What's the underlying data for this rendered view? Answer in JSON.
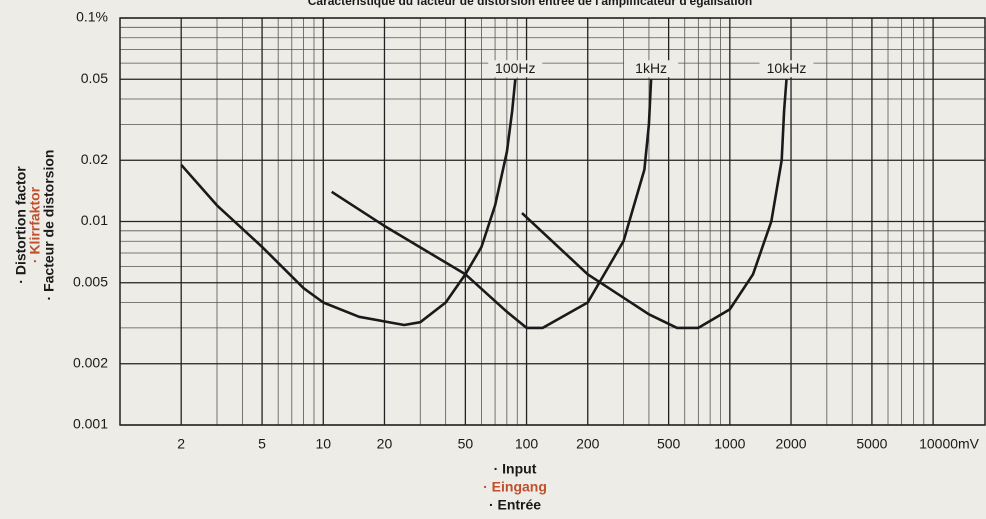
{
  "chart_data": {
    "type": "line",
    "title": "Caractéristique du facteur de distorsion entrée de l'amplificateur d'égalisation",
    "xlabel": [
      "· Input",
      "· Eingang",
      "· Entrée"
    ],
    "ylabel": [
      "· Distortion factor",
      "· Klirrfaktor",
      "· Facteur de distorsion"
    ],
    "xscale": "log",
    "yscale": "log",
    "grid": true,
    "xlim": [
      1,
      18000
    ],
    "ylim": [
      0.001,
      0.1
    ],
    "xticks": [
      2,
      5,
      10,
      20,
      50,
      100,
      200,
      500,
      1000,
      2000,
      5000,
      {
        "value": 10000,
        "label": "10000mV"
      }
    ],
    "yticks": [
      0.001,
      0.002,
      0.005,
      0.01,
      0.02,
      0.05,
      {
        "value": 0.1,
        "label": "0.1%"
      }
    ],
    "xminorticks": [
      3,
      4,
      6,
      7,
      8,
      9,
      30,
      40,
      60,
      70,
      80,
      90,
      300,
      400,
      600,
      700,
      800,
      900,
      3000,
      4000,
      6000,
      7000,
      8000,
      9000
    ],
    "yminorticks": [
      0.003,
      0.004,
      0.006,
      0.007,
      0.008,
      0.009,
      0.03,
      0.04,
      0.06,
      0.07,
      0.08,
      0.09
    ],
    "series": [
      {
        "name": "100Hz",
        "color": "#1a1a1a",
        "x": [
          2,
          3,
          5,
          8,
          10,
          15,
          25,
          30,
          40,
          50,
          60,
          70,
          80,
          85,
          88
        ],
        "values": [
          0.019,
          0.012,
          0.0075,
          0.0047,
          0.004,
          0.0034,
          0.0031,
          0.0032,
          0.004,
          0.0055,
          0.0075,
          0.012,
          0.022,
          0.035,
          0.05
        ]
      },
      {
        "name": "1kHz",
        "color": "#1a1a1a",
        "x": [
          11,
          20,
          50,
          80,
          100,
          120,
          200,
          300,
          380,
          400,
          410
        ],
        "values": [
          0.014,
          0.0095,
          0.0055,
          0.0036,
          0.003,
          0.003,
          0.004,
          0.008,
          0.018,
          0.03,
          0.05
        ]
      },
      {
        "name": "10kHz",
        "color": "#1a1a1a",
        "x": [
          95,
          200,
          400,
          550,
          700,
          1000,
          1300,
          1600,
          1800,
          1850,
          1900
        ],
        "values": [
          0.011,
          0.0055,
          0.0035,
          0.003,
          0.003,
          0.0037,
          0.0055,
          0.01,
          0.02,
          0.035,
          0.05
        ]
      }
    ]
  }
}
